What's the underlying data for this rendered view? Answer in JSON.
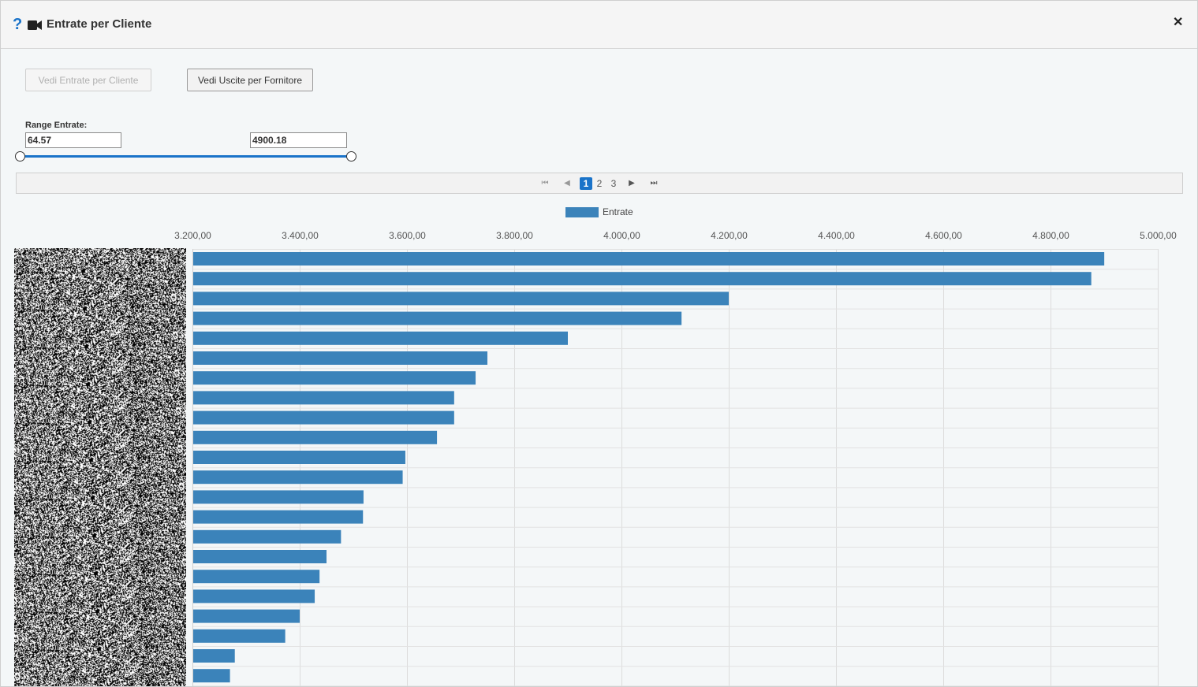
{
  "dialog": {
    "title": "Entrate per Cliente",
    "help_icon": "question-mark-icon",
    "video_icon": "video-camera-icon",
    "close_icon": "close-icon"
  },
  "toolbar": {
    "btn_in_label": "Vedi Entrate per Cliente",
    "btn_out_label": "Vedi Uscite per Fornitore"
  },
  "range": {
    "label": "Range Entrate:",
    "min_value": "64.57",
    "max_value": "4900.18"
  },
  "pager": {
    "pages": [
      "1",
      "2",
      "3"
    ],
    "current": "1"
  },
  "colors": {
    "accent": "#1a73c9",
    "bar": "#3b83ba"
  },
  "chart_data": {
    "type": "bar",
    "orientation": "horizontal",
    "legend": [
      "Entrate"
    ],
    "xlim": [
      3200,
      5000
    ],
    "ticks": [
      "3.200,00",
      "3.400,00",
      "3.600,00",
      "3.800,00",
      "4.000,00",
      "4.200,00",
      "4.400,00",
      "4.600,00",
      "4.800,00",
      "5.000,00"
    ],
    "tick_values": [
      3200,
      3400,
      3600,
      3800,
      4000,
      4200,
      4400,
      4600,
      4800,
      5000
    ],
    "grid": true,
    "legend_position": "top",
    "series": [
      {
        "name": "Entrate",
        "values": [
          4900.18,
          4876,
          4200,
          4112,
          3900,
          3750,
          3728,
          3688,
          3688,
          3656,
          3597,
          3592,
          3519,
          3518,
          3477,
          3450,
          3437,
          3428,
          3400,
          3373,
          3279,
          3270
        ]
      }
    ]
  }
}
